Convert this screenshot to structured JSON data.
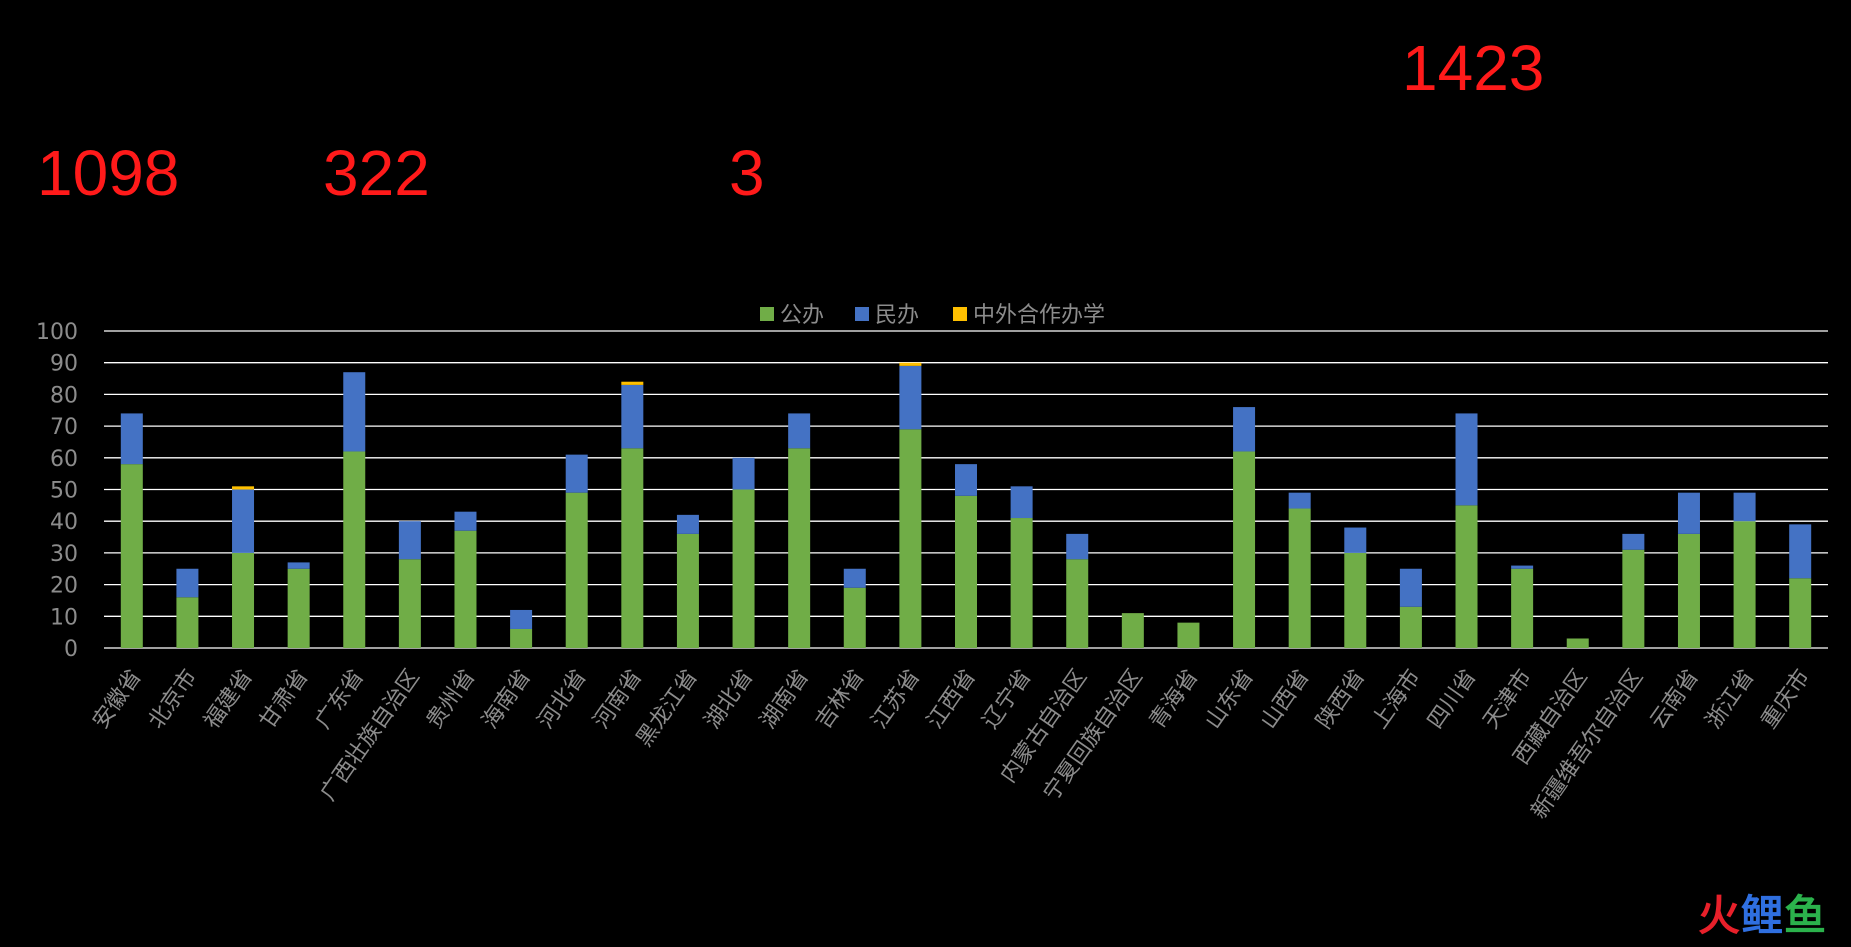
{
  "headline_numbers": [
    "1098",
    "322",
    "3",
    "1423"
  ],
  "watermark": {
    "parts": [
      "火",
      "鲤",
      "鱼"
    ],
    "colors": [
      "#e8202a",
      "#2f6fe0",
      "#2bb24c"
    ]
  },
  "colors": {
    "public": "#70ad47",
    "private": "#4472c4",
    "sino_foreign": "#ffc000",
    "grid": "#ffffff",
    "text": "#8c8c8c"
  },
  "chart_data": {
    "type": "bar",
    "stacked": true,
    "ylim": [
      0,
      100
    ],
    "yticks": [
      0,
      10,
      20,
      30,
      40,
      50,
      60,
      70,
      80,
      90,
      100
    ],
    "grid": true,
    "legend_position": "top",
    "categories": [
      "安徽省",
      "北京市",
      "福建省",
      "甘肃省",
      "广东省",
      "广西壮族自治区",
      "贵州省",
      "海南省",
      "河北省",
      "河南省",
      "黑龙江省",
      "湖北省",
      "湖南省",
      "吉林省",
      "江苏省",
      "江西省",
      "辽宁省",
      "内蒙古自治区",
      "宁夏回族自治区",
      "青海省",
      "山东省",
      "山西省",
      "陕西省",
      "上海市",
      "四川省",
      "天津市",
      "西藏自治区",
      "新疆维吾尔自治区",
      "云南省",
      "浙江省",
      "重庆市"
    ],
    "series": [
      {
        "name": "公办",
        "color": "#70ad47",
        "values": [
          58,
          16,
          30,
          25,
          62,
          28,
          37,
          6,
          49,
          63,
          36,
          50,
          63,
          19,
          69,
          48,
          41,
          28,
          11,
          8,
          62,
          44,
          30,
          13,
          45,
          25,
          3,
          31,
          36,
          40,
          22
        ]
      },
      {
        "name": "民办",
        "color": "#4472c4",
        "values": [
          16,
          9,
          20,
          2,
          25,
          12,
          6,
          6,
          12,
          20,
          6,
          10,
          11,
          6,
          20,
          10,
          10,
          8,
          0,
          0,
          14,
          5,
          8,
          12,
          29,
          1,
          0,
          5,
          13,
          9,
          17
        ]
      },
      {
        "name": "中外合作办学",
        "color": "#ffc000",
        "values": [
          0,
          0,
          1,
          0,
          0,
          0,
          0,
          0,
          0,
          1,
          0,
          0,
          0,
          0,
          1,
          0,
          0,
          0,
          0,
          0,
          0,
          0,
          0,
          0,
          0,
          0,
          0,
          0,
          0,
          0,
          0
        ]
      }
    ]
  }
}
